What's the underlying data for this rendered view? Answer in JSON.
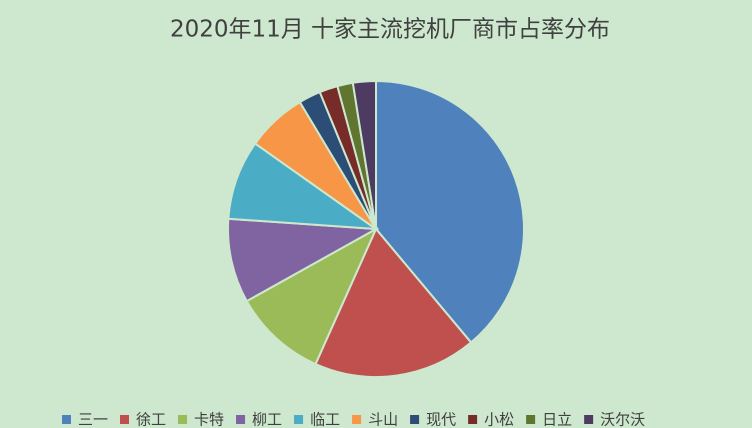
{
  "chart_data": {
    "type": "pie",
    "title": "2020年11月 十家主流挖机厂商市占率分布",
    "categories": [
      "三一",
      "徐工",
      "卡特",
      "柳工",
      "临工",
      "斗山",
      "现代",
      "小松",
      "日立",
      "沃尔沃"
    ],
    "values": [
      38.9,
      17.8,
      10.2,
      9.2,
      8.7,
      6.6,
      2.4,
      2.0,
      1.7,
      2.5
    ],
    "colors": [
      "#4f81bd",
      "#c0504d",
      "#9bbb59",
      "#8064a2",
      "#4bacc6",
      "#f79646",
      "#2c4d75",
      "#772c2a",
      "#5f7530",
      "#4d3b62"
    ],
    "legend": "bottom"
  }
}
